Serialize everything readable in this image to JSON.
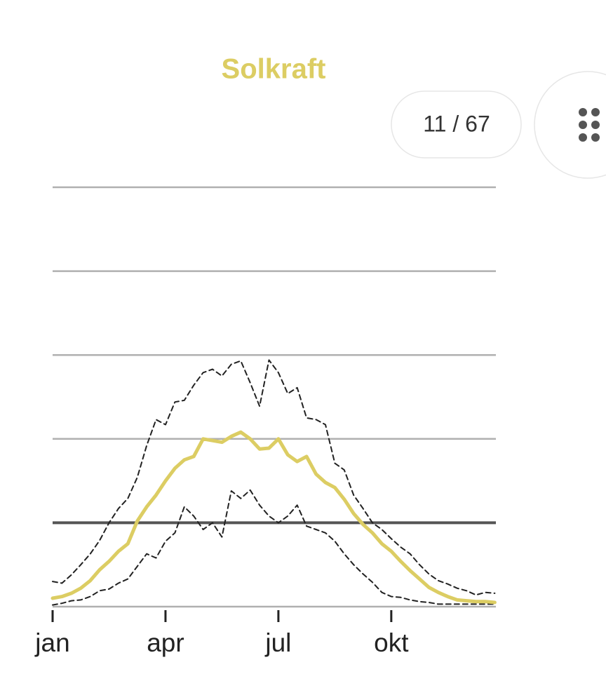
{
  "pager": "11 / 67",
  "chart_data": {
    "type": "line",
    "title": "Solkraft",
    "x": [
      0,
      0.25,
      0.5,
      0.75,
      1,
      1.25,
      1.5,
      1.75,
      2,
      2.25,
      2.5,
      2.75,
      3,
      3.25,
      3.5,
      3.75,
      4,
      4.25,
      4.5,
      4.75,
      5,
      5.25,
      5.5,
      5.75,
      6,
      6.25,
      6.5,
      6.75,
      7,
      7.25,
      7.5,
      7.75,
      8,
      8.25,
      8.5,
      8.75,
      9,
      9.25,
      9.5,
      9.75,
      10,
      10.25,
      10.5,
      10.75,
      11,
      11.25,
      11.5,
      11.75
    ],
    "xlim": [
      0,
      11.78
    ],
    "xticks": [
      {
        "value": 0,
        "label": "jan"
      },
      {
        "value": 3,
        "label": "apr"
      },
      {
        "value": 6,
        "label": "jul"
      },
      {
        "value": 9,
        "label": "okt"
      }
    ],
    "ylim": [
      0,
      5
    ],
    "yticks": [
      0,
      1,
      2,
      3,
      4,
      5
    ],
    "grid": true,
    "reference_line": 1,
    "reference_color": "#555555",
    "series": [
      {
        "color": "#dccd63",
        "style": "solid",
        "width": 5,
        "values": [
          0.1,
          0.12,
          0.16,
          0.22,
          0.31,
          0.44,
          0.54,
          0.66,
          0.75,
          1.02,
          1.19,
          1.33,
          1.5,
          1.65,
          1.75,
          1.79,
          2.0,
          1.98,
          1.96,
          2.03,
          2.08,
          2.0,
          1.88,
          1.89,
          2.0,
          1.81,
          1.73,
          1.79,
          1.58,
          1.48,
          1.42,
          1.28,
          1.11,
          0.98,
          0.88,
          0.75,
          0.66,
          0.54,
          0.43,
          0.33,
          0.23,
          0.17,
          0.12,
          0.08,
          0.07,
          0.06,
          0.06,
          0.05
        ]
      },
      {
        "color": "#222222",
        "style": "dashed",
        "width": 2,
        "values": [
          0.3,
          0.28,
          0.38,
          0.5,
          0.63,
          0.79,
          1.0,
          1.17,
          1.29,
          1.54,
          1.92,
          2.23,
          2.17,
          2.44,
          2.46,
          2.64,
          2.79,
          2.83,
          2.75,
          2.89,
          2.93,
          2.67,
          2.39,
          2.94,
          2.79,
          2.54,
          2.61,
          2.25,
          2.23,
          2.17,
          1.71,
          1.63,
          1.33,
          1.17,
          1.0,
          0.92,
          0.81,
          0.71,
          0.63,
          0.5,
          0.39,
          0.31,
          0.27,
          0.22,
          0.19,
          0.14,
          0.17,
          0.16
        ]
      },
      {
        "color": "#222222",
        "style": "dashed",
        "width": 2,
        "values": [
          0.02,
          0.04,
          0.07,
          0.08,
          0.12,
          0.19,
          0.21,
          0.28,
          0.33,
          0.48,
          0.63,
          0.58,
          0.78,
          0.88,
          1.19,
          1.08,
          0.92,
          1.0,
          0.83,
          1.38,
          1.29,
          1.39,
          1.21,
          1.08,
          1.0,
          1.08,
          1.21,
          0.96,
          0.92,
          0.88,
          0.78,
          0.63,
          0.5,
          0.39,
          0.29,
          0.17,
          0.12,
          0.11,
          0.08,
          0.06,
          0.05,
          0.03,
          0.03,
          0.03,
          0.03,
          0.03,
          0.03,
          0.03
        ]
      }
    ]
  }
}
